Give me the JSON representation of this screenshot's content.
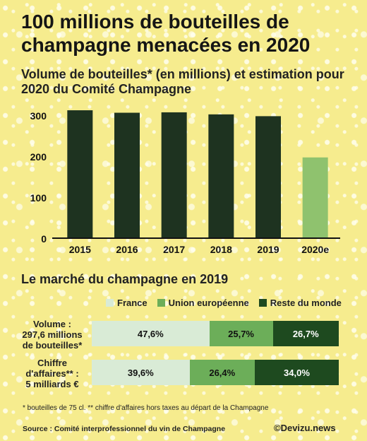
{
  "header": {
    "title": "100 millions de bouteilles de champagne menacées en 2020",
    "subtitle": "Volume de bouteilles* (en millions) et estimation pour 2020 du Comité Champagne"
  },
  "chart_data": [
    {
      "type": "bar",
      "title": "Volume de bouteilles* (en millions) et estimation pour 2020 du Comité Champagne",
      "categories": [
        "2015",
        "2016",
        "2017",
        "2018",
        "2019",
        "2020e"
      ],
      "values": [
        312,
        306,
        307,
        302,
        297.6,
        197
      ],
      "ylim": [
        0,
        300
      ],
      "yticks": [
        0,
        100,
        200,
        300
      ],
      "grid": false,
      "colors": {
        "actual": "#1e3320",
        "estimate": "#8fc26e"
      }
    },
    {
      "type": "bar",
      "stacked": "percent",
      "title": "Le marché du champagne en 2019",
      "categories": [
        "Volume : 297,6 millions de bouteilles*",
        "Chiffre d'affaires** : 5 milliards €"
      ],
      "series": [
        {
          "name": "France",
          "values": [
            47.6,
            39.6
          ],
          "labels": [
            "47,6%",
            "39,6%"
          ],
          "color": "#d9ebd6"
        },
        {
          "name": "Union européenne",
          "values": [
            25.7,
            26.4
          ],
          "labels": [
            "25,7%",
            "26,4%"
          ],
          "color": "#6cae59"
        },
        {
          "name": "Reste du monde",
          "values": [
            26.7,
            34.0
          ],
          "labels": [
            "26,7%",
            "34,0%"
          ],
          "color": "#1e4a1f"
        }
      ],
      "legend": "top"
    }
  ],
  "market": {
    "title": "Le marché du champagne en 2019",
    "rows": [
      {
        "label_lines": [
          "Volume :",
          "297,6 millions",
          "de bouteilles*"
        ]
      },
      {
        "label_lines": [
          "Chiffre",
          "d'affaires** :",
          "5 milliards €"
        ]
      }
    ]
  },
  "footer": {
    "footnote": "* bouteilles de 75 cl. ** chiffre d'affaires hors taxes au départ de la Champagne",
    "source": "Source : Comité interprofessionnel du vin de Champagne",
    "credit": "©Devizu.news"
  }
}
